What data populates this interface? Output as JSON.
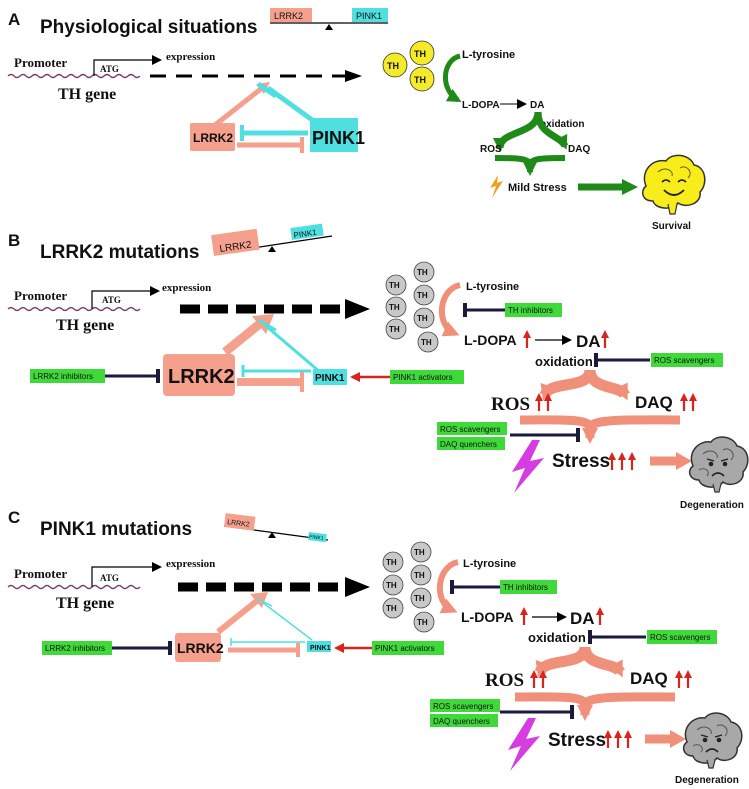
{
  "panels": [
    {
      "letter": "A",
      "title": "Physiological situations",
      "seesaw_left": "LRRK2",
      "seesaw_right": "PINK1",
      "promoter": "Promoter",
      "atg": "ATG",
      "expression": "expression",
      "gene": "TH gene",
      "lrrk2": "LRRK2",
      "pink1": "PINK1",
      "th": "TH",
      "l_tyrosine": "L-tyrosine",
      "l_dopa": "L-DOPA",
      "da": "DA",
      "oxidation": "oxidation",
      "ros": "ROS",
      "daq": "DAQ",
      "stress": "Mild Stress",
      "outcome": "Survival"
    },
    {
      "letter": "B",
      "title": "LRRK2 mutations",
      "seesaw_left": "LRRK2",
      "seesaw_right": "PINK1",
      "promoter": "Promoter",
      "atg": "ATG",
      "expression": "expression",
      "gene": "TH gene",
      "lrrk2": "LRRK2",
      "pink1": "PINK1",
      "th": "TH",
      "lrrk2_inhibitors": "LRRK2 inhibitors",
      "pink1_activators": "PINK1 activators",
      "th_inhibitors": "TH inhibitors",
      "ros_scavengers": "ROS scavengers",
      "ros_scavengers_2": "ROS scavengers",
      "daq_quenchers": "DAQ quenchers",
      "l_tyrosine": "L-tyrosine",
      "l_dopa": "L-DOPA",
      "da": "DA",
      "oxidation": "oxidation",
      "ros": "ROS",
      "daq": "DAQ",
      "stress": "Stress",
      "outcome": "Degeneration"
    },
    {
      "letter": "C",
      "title": "PINK1 mutations",
      "seesaw_left": "LRRK2",
      "seesaw_right": "PINK1",
      "promoter": "Promoter",
      "atg": "ATG",
      "expression": "expression",
      "gene": "TH gene",
      "lrrk2": "LRRK2",
      "pink1": "PINK1",
      "th": "TH",
      "lrrk2_inhibitors": "LRRK2 inhibitors",
      "pink1_activators": "PINK1 activators",
      "th_inhibitors": "TH inhibitors",
      "ros_scavengers": "ROS scavengers",
      "ros_scavengers_2": "ROS scavengers",
      "daq_quenchers": "DAQ quenchers",
      "l_tyrosine": "L-tyrosine",
      "l_dopa": "L-DOPA",
      "da": "DA",
      "oxidation": "oxidation",
      "ros": "ROS",
      "daq": "DAQ",
      "stress": "Stress",
      "outcome": "Degeneration"
    }
  ],
  "colors": {
    "lrrk2": "#f4a08c",
    "pink1": "#4fdfe0",
    "th_yellow": "#f5ea2a",
    "th_gray": "#c8c8c8",
    "green_arrow": "#1f8a17",
    "salmon_arrow": "#f0907a",
    "green_label": "#3fd93a",
    "red_arrow": "#d8241c",
    "inhibitor_line": "#1a1a3a",
    "bolt": "#d63ce0"
  }
}
